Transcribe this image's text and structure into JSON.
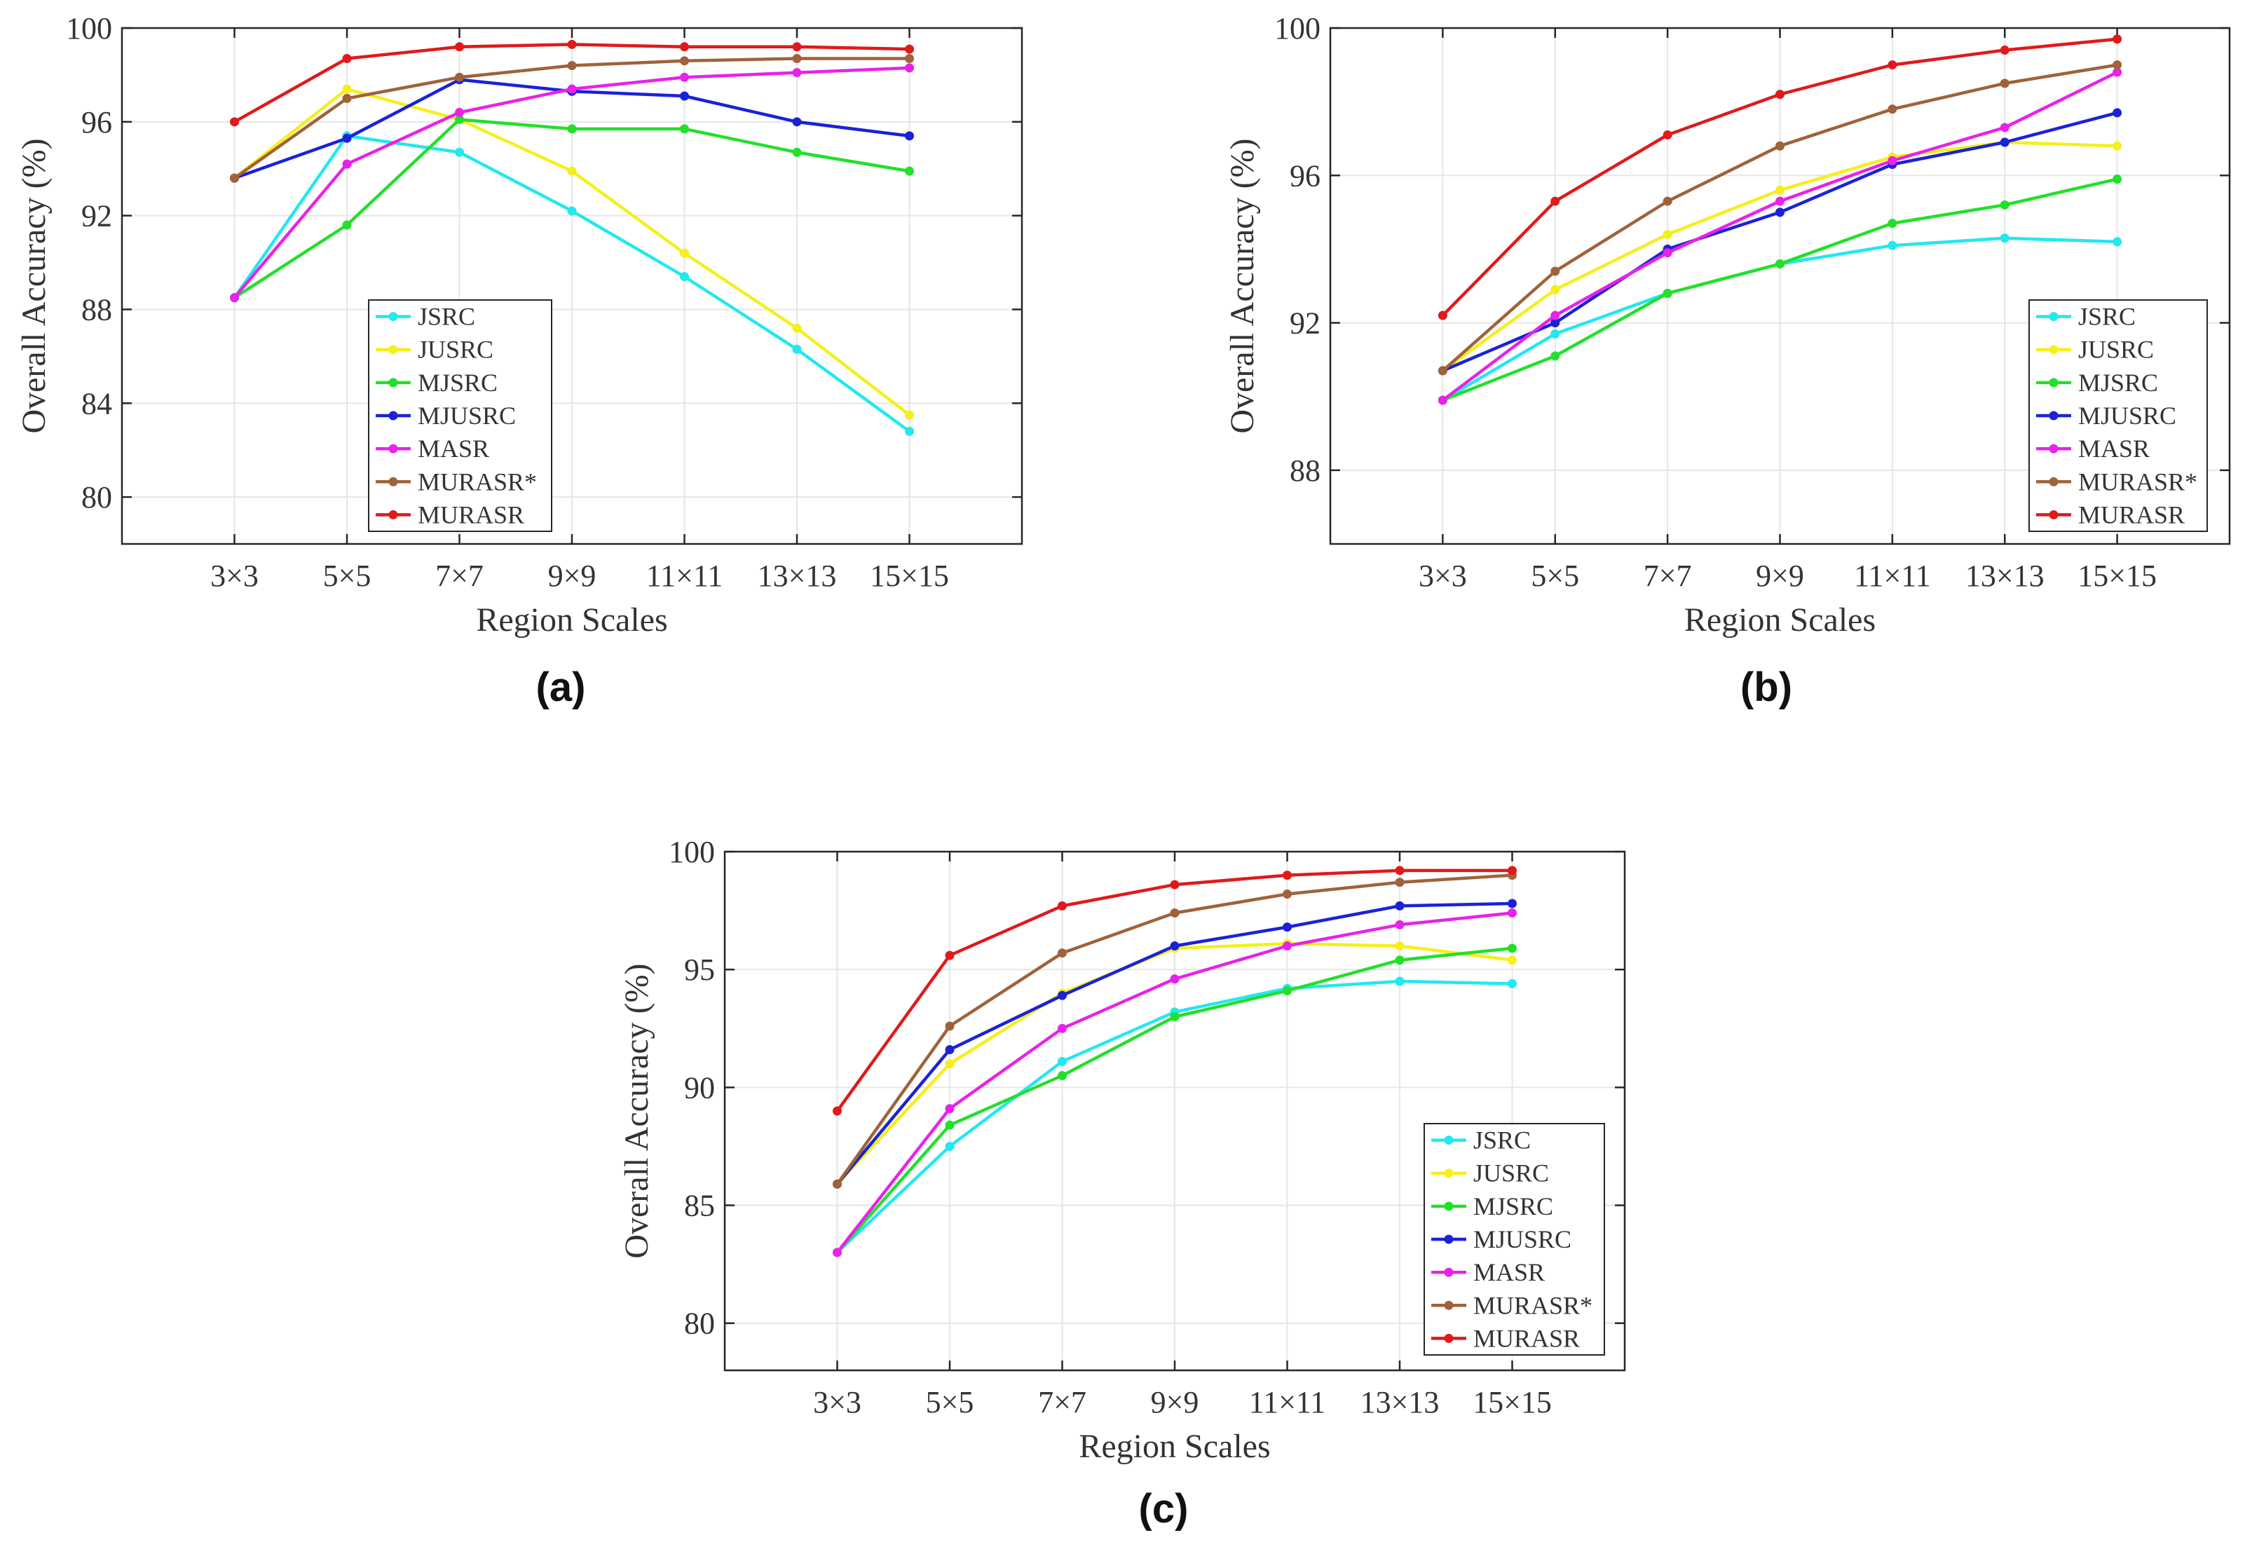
{
  "figure": {
    "panels": [
      "(a)",
      "(b)",
      "(c)"
    ]
  },
  "chart_data": [
    {
      "type": "line",
      "panel": "(a)",
      "xlabel": "Region Scales",
      "ylabel": "Overall Accuracy (%)",
      "categories": [
        "3×3",
        "5×5",
        "7×7",
        "9×9",
        "11×11",
        "13×13",
        "15×15"
      ],
      "ylim": [
        78,
        100
      ],
      "yticks": [
        80,
        84,
        88,
        92,
        96,
        100
      ],
      "grid": true,
      "legend_position": "middle-center",
      "series": [
        {
          "name": "JSRC",
          "color": "#22e8f0",
          "values": [
            88.5,
            95.4,
            94.7,
            92.2,
            89.4,
            86.3,
            82.8
          ]
        },
        {
          "name": "JUSRC",
          "color": "#f5ef1c",
          "values": [
            93.6,
            97.4,
            96.1,
            93.9,
            90.4,
            87.2,
            83.5
          ]
        },
        {
          "name": "MJSRC",
          "color": "#22e02a",
          "values": [
            88.5,
            91.6,
            96.1,
            95.7,
            95.7,
            94.7,
            93.9
          ]
        },
        {
          "name": "MJUSRC",
          "color": "#1a22d8",
          "values": [
            93.6,
            95.3,
            97.8,
            97.3,
            97.1,
            96.0,
            95.4
          ]
        },
        {
          "name": "MASR",
          "color": "#e822e8",
          "values": [
            88.5,
            94.2,
            96.4,
            97.4,
            97.9,
            98.1,
            98.3
          ]
        },
        {
          "name": "MURASR*",
          "color": "#a0623a",
          "values": [
            93.6,
            97.0,
            97.9,
            98.4,
            98.6,
            98.7,
            98.7
          ]
        },
        {
          "name": "MURASR",
          "color": "#e01a1a",
          "values": [
            96.0,
            98.7,
            99.2,
            99.3,
            99.2,
            99.2,
            99.1
          ]
        }
      ]
    },
    {
      "type": "line",
      "panel": "(b)",
      "xlabel": "Region Scales",
      "ylabel": "Overall Accuracy (%)",
      "categories": [
        "3×3",
        "5×5",
        "7×7",
        "9×9",
        "11×11",
        "13×13",
        "15×15"
      ],
      "ylim": [
        86,
        100
      ],
      "yticks": [
        88,
        92,
        96,
        100
      ],
      "grid": true,
      "legend_position": "bottom-right",
      "series": [
        {
          "name": "JSRC",
          "color": "#22e8f0",
          "values": [
            89.9,
            91.7,
            92.8,
            93.6,
            94.1,
            94.3,
            94.2
          ]
        },
        {
          "name": "JUSRC",
          "color": "#f5ef1c",
          "values": [
            90.7,
            92.9,
            94.4,
            95.6,
            96.5,
            96.9,
            96.8
          ]
        },
        {
          "name": "MJSRC",
          "color": "#22e02a",
          "values": [
            89.9,
            91.1,
            92.8,
            93.6,
            94.7,
            95.2,
            95.9
          ]
        },
        {
          "name": "MJUSRC",
          "color": "#1a22d8",
          "values": [
            90.7,
            92.0,
            94.0,
            95.0,
            96.3,
            96.9,
            97.7
          ]
        },
        {
          "name": "MASR",
          "color": "#e822e8",
          "values": [
            89.9,
            92.2,
            93.9,
            95.3,
            96.4,
            97.3,
            98.8
          ]
        },
        {
          "name": "MURASR*",
          "color": "#a0623a",
          "values": [
            90.7,
            93.4,
            95.3,
            96.8,
            97.8,
            98.5,
            99.0
          ]
        },
        {
          "name": "MURASR",
          "color": "#e01a1a",
          "values": [
            92.2,
            95.3,
            97.1,
            98.2,
            99.0,
            99.4,
            99.7
          ]
        }
      ]
    },
    {
      "type": "line",
      "panel": "(c)",
      "xlabel": "Region Scales",
      "ylabel": "Overall Accuracy (%)",
      "categories": [
        "3×3",
        "5×5",
        "7×7",
        "9×9",
        "11×11",
        "13×13",
        "15×15"
      ],
      "ylim": [
        78,
        100
      ],
      "yticks": [
        80,
        85,
        90,
        95,
        100
      ],
      "grid": true,
      "legend_position": "bottom-right",
      "series": [
        {
          "name": "JSRC",
          "color": "#22e8f0",
          "values": [
            83.0,
            87.5,
            91.1,
            93.2,
            94.2,
            94.5,
            94.4
          ]
        },
        {
          "name": "JUSRC",
          "color": "#f5ef1c",
          "values": [
            85.9,
            91.0,
            94.0,
            95.9,
            96.1,
            96.0,
            95.4
          ]
        },
        {
          "name": "MJSRC",
          "color": "#22e02a",
          "values": [
            83.0,
            88.4,
            90.5,
            93.0,
            94.1,
            95.4,
            95.9
          ]
        },
        {
          "name": "MJUSRC",
          "color": "#1a22d8",
          "values": [
            85.9,
            91.6,
            93.9,
            96.0,
            96.8,
            97.7,
            97.8
          ]
        },
        {
          "name": "MASR",
          "color": "#e822e8",
          "values": [
            83.0,
            89.1,
            92.5,
            94.6,
            96.0,
            96.9,
            97.4
          ]
        },
        {
          "name": "MURASR*",
          "color": "#a0623a",
          "values": [
            85.9,
            92.6,
            95.7,
            97.4,
            98.2,
            98.7,
            99.0
          ]
        },
        {
          "name": "MURASR",
          "color": "#e01a1a",
          "values": [
            89.0,
            95.6,
            97.7,
            98.6,
            99.0,
            99.2,
            99.2
          ]
        }
      ]
    }
  ]
}
